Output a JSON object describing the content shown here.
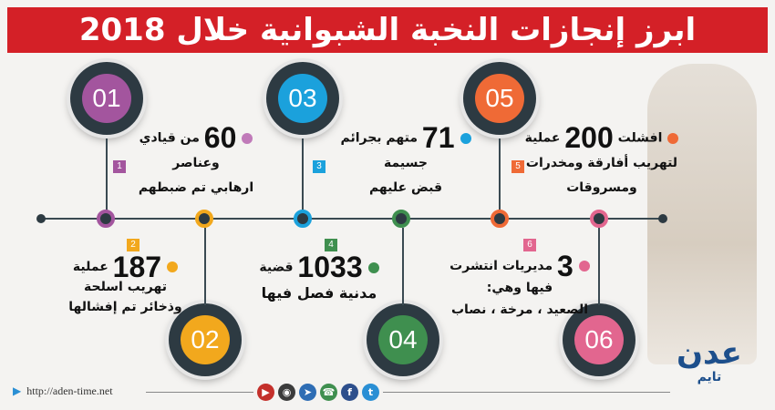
{
  "title": "ابرز إنجازات النخبة الشبوانية خلال 2018",
  "colors": {
    "ring": "#2d3a42",
    "title_bg": "#d42027",
    "c1": "#a3559e",
    "c2": "#f2a81d",
    "c3": "#1ba1dc",
    "c4": "#3f8f4f",
    "c5": "#ef6a36",
    "c6": "#e2668f"
  },
  "items": [
    {
      "num": "01",
      "badge": "1",
      "value": "60",
      "line1": "من قيادي",
      "line2": "وعناصر",
      "line3": "ارهابي تم ضبطهم"
    },
    {
      "num": "02",
      "badge": "2",
      "value": "187",
      "line1": "عملية",
      "line2": "تهريب اسلحة",
      "line3": "وذخائر تم إفشالها"
    },
    {
      "num": "03",
      "badge": "3",
      "value": "71",
      "line1": "متهم بجرائم",
      "line2": "جسيمة",
      "line3": "قبض عليهم"
    },
    {
      "num": "04",
      "badge": "4",
      "value": "1033",
      "line1": "قضية",
      "line2": "مدنية فصل فيها",
      "line3": ""
    },
    {
      "num": "05",
      "badge": "5",
      "value": "200",
      "prefix": "افشلت",
      "line1": "عملية",
      "line2": "لتهريب أفارقة ومخدرات",
      "line3": "ومسروقات"
    },
    {
      "num": "06",
      "badge": "6",
      "value": "3",
      "line1": "مديريات انتشرت",
      "line2": "فيها وهي:",
      "line3": "الصعيد ، مرخة ، نصاب"
    }
  ],
  "footer": {
    "url": "http://aden-time.net",
    "social": [
      "youtube-icon",
      "instagram-icon",
      "telegram-icon",
      "whatsapp-icon",
      "facebook-icon",
      "twitter-icon"
    ]
  },
  "logo": {
    "line1": "عدن",
    "line2": "تايم"
  }
}
